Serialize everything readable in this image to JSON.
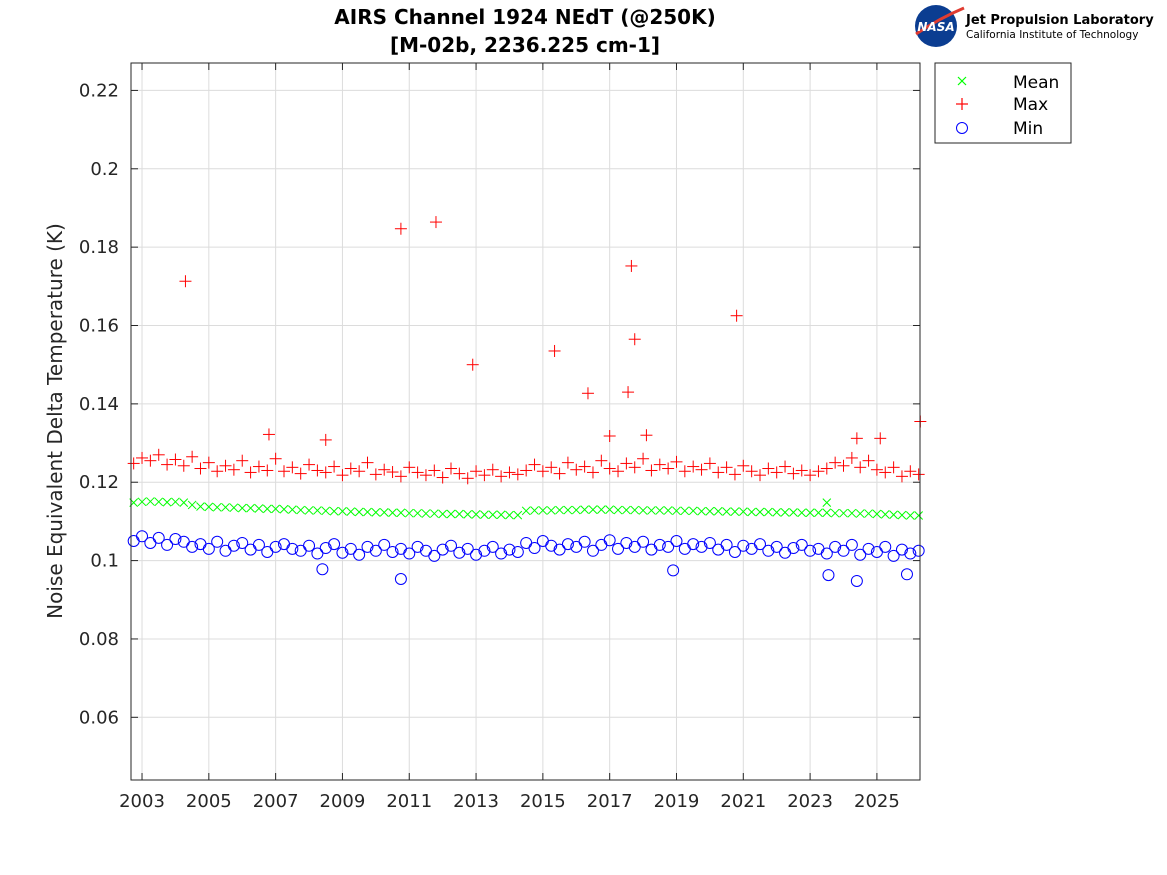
{
  "chart_data": {
    "type": "scatter",
    "title": [
      "AIRS Channel 1924 NEdT (@250K)",
      "[M-02b, 2236.225 cm-1]"
    ],
    "xlabel": "",
    "ylabel": "Noise Equivalent Delta Temperature (K)",
    "xlim": [
      2002.67,
      2026.29
    ],
    "ylim": [
      0.044,
      0.227
    ],
    "xticks": [
      2003,
      2005,
      2007,
      2009,
      2011,
      2013,
      2015,
      2017,
      2019,
      2021,
      2023,
      2025
    ],
    "xtick_labels": [
      "2003",
      "2005",
      "2007",
      "2009",
      "2011",
      "2013",
      "2015",
      "2017",
      "2019",
      "2021",
      "2023",
      "2025"
    ],
    "yticks": [
      0.06,
      0.08,
      0.1,
      0.12,
      0.14,
      0.16,
      0.18,
      0.2,
      0.22
    ],
    "ytick_labels": [
      "0.06",
      "0.08",
      "0.1",
      "0.12",
      "0.14",
      "0.16",
      "0.18",
      "0.2",
      "0.22"
    ],
    "grid": true,
    "legend_placement": "outside-top-right",
    "x": [
      2002.75,
      2003,
      2003.25,
      2003.5,
      2003.75,
      2004,
      2004.25,
      2004.5,
      2004.75,
      2005,
      2005.25,
      2005.5,
      2005.75,
      2006,
      2006.25,
      2006.5,
      2006.75,
      2007,
      2007.25,
      2007.5,
      2007.75,
      2008,
      2008.25,
      2008.5,
      2008.75,
      2009,
      2009.25,
      2009.5,
      2009.75,
      2010,
      2010.25,
      2010.5,
      2010.75,
      2011,
      2011.25,
      2011.5,
      2011.75,
      2012,
      2012.25,
      2012.5,
      2012.75,
      2013,
      2013.25,
      2013.5,
      2013.75,
      2014,
      2014.25,
      2014.5,
      2014.75,
      2015,
      2015.25,
      2015.5,
      2015.75,
      2016,
      2016.25,
      2016.5,
      2016.75,
      2017,
      2017.25,
      2017.5,
      2017.75,
      2018,
      2018.25,
      2018.5,
      2018.75,
      2019,
      2019.25,
      2019.5,
      2019.75,
      2020,
      2020.25,
      2020.5,
      2020.75,
      2021,
      2021.25,
      2021.5,
      2021.75,
      2022,
      2022.25,
      2022.5,
      2022.75,
      2023,
      2023.25,
      2023.5,
      2023.75,
      2024,
      2024.25,
      2024.5,
      2024.75,
      2025,
      2025.25,
      2025.5,
      2025.75,
      2026,
      2026.25
    ],
    "series": [
      {
        "name": "Mean",
        "marker": "x",
        "color": "#00ff00",
        "values": [
          0.1148,
          0.115,
          0.1151,
          0.115,
          0.1149,
          0.115,
          0.1148,
          0.1142,
          0.1138,
          0.1137,
          0.1136,
          0.1136,
          0.1135,
          0.1134,
          0.1134,
          0.1133,
          0.1132,
          0.1132,
          0.1131,
          0.113,
          0.1129,
          0.1128,
          0.1128,
          0.1127,
          0.1126,
          0.1126,
          0.1125,
          0.1124,
          0.1124,
          0.1123,
          0.1123,
          0.1122,
          0.1122,
          0.1121,
          0.1121,
          0.112,
          0.112,
          0.1119,
          0.1119,
          0.1119,
          0.1118,
          0.1118,
          0.1117,
          0.1117,
          0.1117,
          0.1116,
          0.1116,
          0.1127,
          0.1128,
          0.1128,
          0.1128,
          0.1129,
          0.1129,
          0.1129,
          0.113,
          0.113,
          0.113,
          0.113,
          0.1129,
          0.1129,
          0.1129,
          0.1128,
          0.1128,
          0.1128,
          0.1128,
          0.1127,
          0.1127,
          0.1127,
          0.1126,
          0.1126,
          0.1126,
          0.1125,
          0.1125,
          0.1125,
          0.1124,
          0.1124,
          0.1124,
          0.1123,
          0.1123,
          0.1123,
          0.1122,
          0.1122,
          0.1122,
          0.1122,
          0.1121,
          0.1121,
          0.1121,
          0.112,
          0.112,
          0.1119,
          0.1118,
          0.1117,
          0.1116,
          0.1115,
          0.1115
        ],
        "extra_points": [
          [
            2023.5,
            0.1148
          ]
        ]
      },
      {
        "name": "Max",
        "marker": "+",
        "color": "#ff0000",
        "values": [
          0.1248,
          0.1262,
          0.1255,
          0.127,
          0.1245,
          0.1258,
          0.1242,
          0.1265,
          0.1235,
          0.125,
          0.1228,
          0.1242,
          0.1232,
          0.1255,
          0.1225,
          0.124,
          0.123,
          0.126,
          0.1228,
          0.1238,
          0.1222,
          0.1245,
          0.123,
          0.1225,
          0.124,
          0.1218,
          0.1235,
          0.1228,
          0.125,
          0.122,
          0.1232,
          0.1226,
          0.1215,
          0.1238,
          0.1225,
          0.1218,
          0.123,
          0.1212,
          0.1235,
          0.1222,
          0.121,
          0.1228,
          0.1218,
          0.1232,
          0.1215,
          0.1225,
          0.122,
          0.123,
          0.1245,
          0.1228,
          0.1238,
          0.1222,
          0.125,
          0.1232,
          0.124,
          0.1225,
          0.1255,
          0.1235,
          0.1228,
          0.1248,
          0.1238,
          0.126,
          0.123,
          0.1245,
          0.1235,
          0.1252,
          0.1228,
          0.124,
          0.1232,
          0.1248,
          0.1225,
          0.1238,
          0.122,
          0.1242,
          0.1228,
          0.1218,
          0.1235,
          0.1225,
          0.124,
          0.1222,
          0.123,
          0.1218,
          0.1228,
          0.1235,
          0.125,
          0.1242,
          0.1262,
          0.1238,
          0.1255,
          0.1232,
          0.1225,
          0.1238,
          0.1215,
          0.1228,
          0.122
        ],
        "extra_points": [
          [
            2004.3,
            0.1713
          ],
          [
            2010.75,
            0.1847
          ],
          [
            2011.8,
            0.1864
          ],
          [
            2012.9,
            0.15
          ],
          [
            2015.35,
            0.1535
          ],
          [
            2016.35,
            0.1427
          ],
          [
            2017.55,
            0.143
          ],
          [
            2017.65,
            0.1752
          ],
          [
            2017.75,
            0.1565
          ],
          [
            2020.8,
            0.1625
          ],
          [
            2026.3,
            0.1355
          ],
          [
            2006.8,
            0.1322
          ],
          [
            2008.5,
            0.1308
          ],
          [
            2017,
            0.1318
          ],
          [
            2018.1,
            0.132
          ],
          [
            2024.4,
            0.1312
          ],
          [
            2025.1,
            0.1312
          ]
        ]
      },
      {
        "name": "Min",
        "marker": "o",
        "color": "#0000ff",
        "values": [
          0.105,
          0.1062,
          0.1045,
          0.1058,
          0.104,
          0.1055,
          0.1048,
          0.1035,
          0.1042,
          0.103,
          0.1048,
          0.1025,
          0.1038,
          0.1045,
          0.1028,
          0.104,
          0.1022,
          0.1035,
          0.1042,
          0.103,
          0.1025,
          0.1038,
          0.1018,
          0.1032,
          0.1042,
          0.102,
          0.103,
          0.1015,
          0.1035,
          0.1025,
          0.104,
          0.1022,
          0.103,
          0.1018,
          0.1035,
          0.1025,
          0.1012,
          0.1028,
          0.1038,
          0.102,
          0.103,
          0.1015,
          0.1025,
          0.1035,
          0.1018,
          0.1028,
          0.1022,
          0.1045,
          0.1032,
          0.105,
          0.1038,
          0.1028,
          0.1042,
          0.1035,
          0.1048,
          0.1025,
          0.104,
          0.1052,
          0.103,
          0.1045,
          0.1035,
          0.1048,
          0.1028,
          0.104,
          0.1035,
          0.105,
          0.103,
          0.1042,
          0.1035,
          0.1045,
          0.1028,
          0.104,
          0.1022,
          0.1038,
          0.103,
          0.1042,
          0.1025,
          0.1035,
          0.102,
          0.1032,
          0.104,
          0.1025,
          0.103,
          0.1018,
          0.1035,
          0.1025,
          0.104,
          0.1015,
          0.103,
          0.1022,
          0.1035,
          0.1012,
          0.1028,
          0.1018,
          0.1025
        ],
        "extra_points": [
          [
            2010.75,
            0.0953
          ],
          [
            2024.4,
            0.0948
          ],
          [
            2023.55,
            0.0963
          ],
          [
            2025.9,
            0.0965
          ],
          [
            2008.4,
            0.0978
          ],
          [
            2018.9,
            0.0975
          ]
        ]
      }
    ]
  },
  "logo": {
    "agency": "NASA",
    "line1": "Jet Propulsion Laboratory",
    "line2": "California Institute of Technology"
  }
}
